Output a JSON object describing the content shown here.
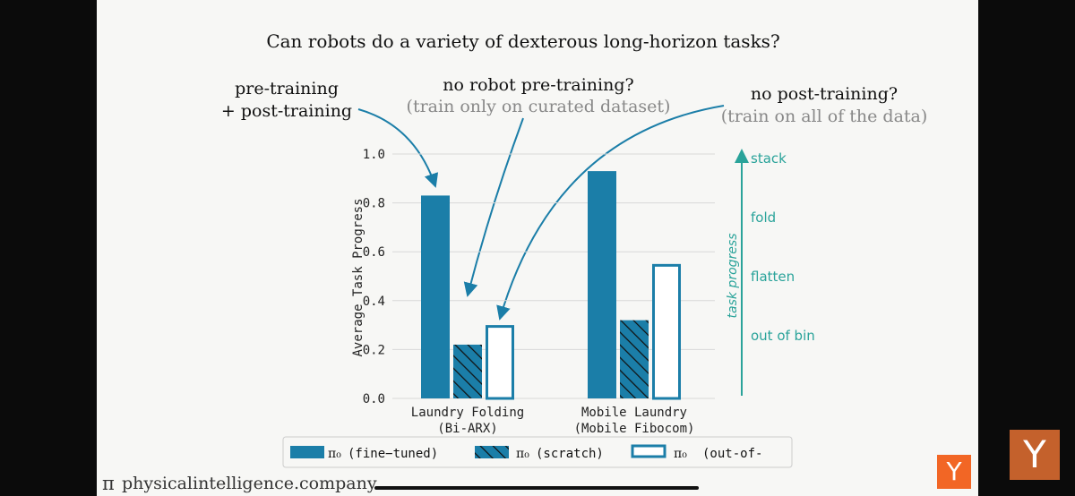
{
  "chart_data": {
    "type": "bar",
    "title": "Can robots do a variety of dexterous long-horizon tasks?",
    "ylabel": "Average Task Progress",
    "ylim": [
      0,
      1.0
    ],
    "yticks": [
      "0.0",
      "0.2",
      "0.4",
      "0.6",
      "0.8",
      "1.0"
    ],
    "categories": [
      [
        "Laundry Folding",
        "(Bi-ARX)"
      ],
      [
        "Mobile Laundry",
        "(Mobile Fibocom)"
      ]
    ],
    "series": [
      {
        "name": "(fine−tuned)",
        "style": "solid",
        "values": [
          0.83,
          0.93
        ]
      },
      {
        "name": "(scratch)",
        "style": "hatched",
        "values": [
          0.22,
          0.32
        ]
      },
      {
        "name": "(out-of-",
        "style": "outline",
        "values": [
          0.3,
          0.55
        ]
      }
    ],
    "legend_symbol": "π₀",
    "colors": {
      "bar": "#1b7ea8",
      "accent": "#2aa39a",
      "arrow": "#1b7ea8"
    },
    "grid": true,
    "legend_position": "bottom",
    "annotations": [
      {
        "lines": [
          "pre-training",
          "+ post-training"
        ],
        "target": "Laundry Folding fine-tuned"
      },
      {
        "lines": [
          "no robot pre-training?",
          "(train only on curated dataset)"
        ],
        "target": "Laundry Folding scratch"
      },
      {
        "lines": [
          "no post-training?",
          "(train on all of the data)"
        ],
        "target": "Laundry Folding out-of-"
      }
    ],
    "task_progress_axis": {
      "label": "task progress",
      "levels": [
        "stack",
        "fold",
        "flatten",
        "out of bin"
      ]
    }
  },
  "footer": {
    "brand": "physicalintelligence.company",
    "pi_symbol": "π"
  },
  "logos": {
    "small": "Y",
    "big": "Y"
  }
}
